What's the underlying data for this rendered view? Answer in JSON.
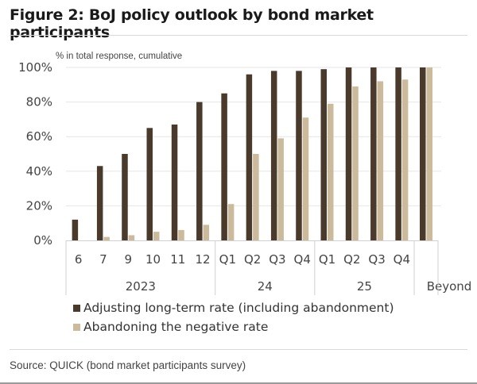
{
  "header": {
    "title": "Figure 2: BoJ policy outlook by bond market participants"
  },
  "footer": {
    "source": "Source: QUICK (bond market participants survey)"
  },
  "colors": {
    "dark": "#4a3a2c",
    "light": "#cbbb9c",
    "grid": "#e6e6e6",
    "axis": "#d0d0d0"
  },
  "chart_data": {
    "type": "bar",
    "title": "Figure 2: BoJ policy outlook by bond market participants",
    "ylabel": "% in total response, cumulative",
    "xlabel": "",
    "ylim": [
      0,
      100
    ],
    "yticks": [
      "0%",
      "20%",
      "40%",
      "60%",
      "80%",
      "100%"
    ],
    "ytick_values": [
      0,
      20,
      40,
      60,
      80,
      100
    ],
    "grid": true,
    "legend_position": "bottom-left",
    "categories": [
      "6",
      "7",
      "9",
      "10",
      "11",
      "12",
      "Q1",
      "Q2",
      "Q3",
      "Q4",
      "Q1",
      "Q2",
      "Q3",
      "Q4",
      ""
    ],
    "groups": [
      {
        "label": "2023",
        "count": 6
      },
      {
        "label": "24",
        "count": 4
      },
      {
        "label": "25",
        "count": 4
      },
      {
        "label": "Beyond",
        "count": 1
      }
    ],
    "series": [
      {
        "name": "Adjusting long-term rate (including abandonment)",
        "color": "#4a3a2c",
        "values": [
          12,
          43,
          50,
          65,
          67,
          80,
          85,
          96,
          98,
          98,
          99,
          100,
          100,
          100,
          100
        ]
      },
      {
        "name": "Abandoning the negative rate",
        "color": "#cbbb9c",
        "values": [
          0,
          2,
          3,
          5,
          6,
          9,
          21,
          50,
          59,
          71,
          79,
          89,
          92,
          93,
          100
        ]
      }
    ]
  }
}
